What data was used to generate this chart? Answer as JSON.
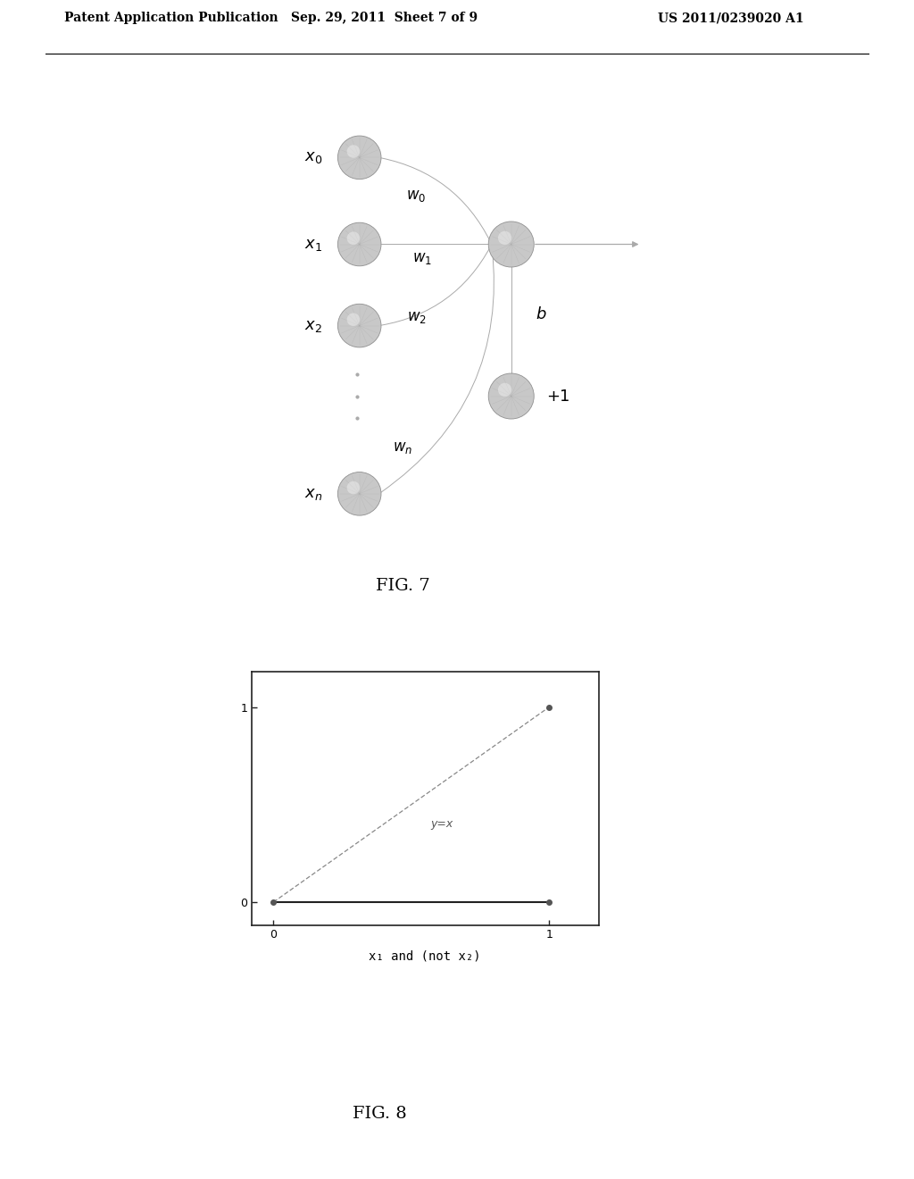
{
  "header_left": "Patent Application Publication",
  "header_mid": "Sep. 29, 2011  Sheet 7 of 9",
  "header_right": "US 2011/0239020 A1",
  "fig7_label": "FIG. 7",
  "fig8_label": "FIG. 8",
  "fig8_xlabel": "x₁ and (not x₂)",
  "bg_color": "#ffffff",
  "text_color": "#000000",
  "header_font_size": 11
}
